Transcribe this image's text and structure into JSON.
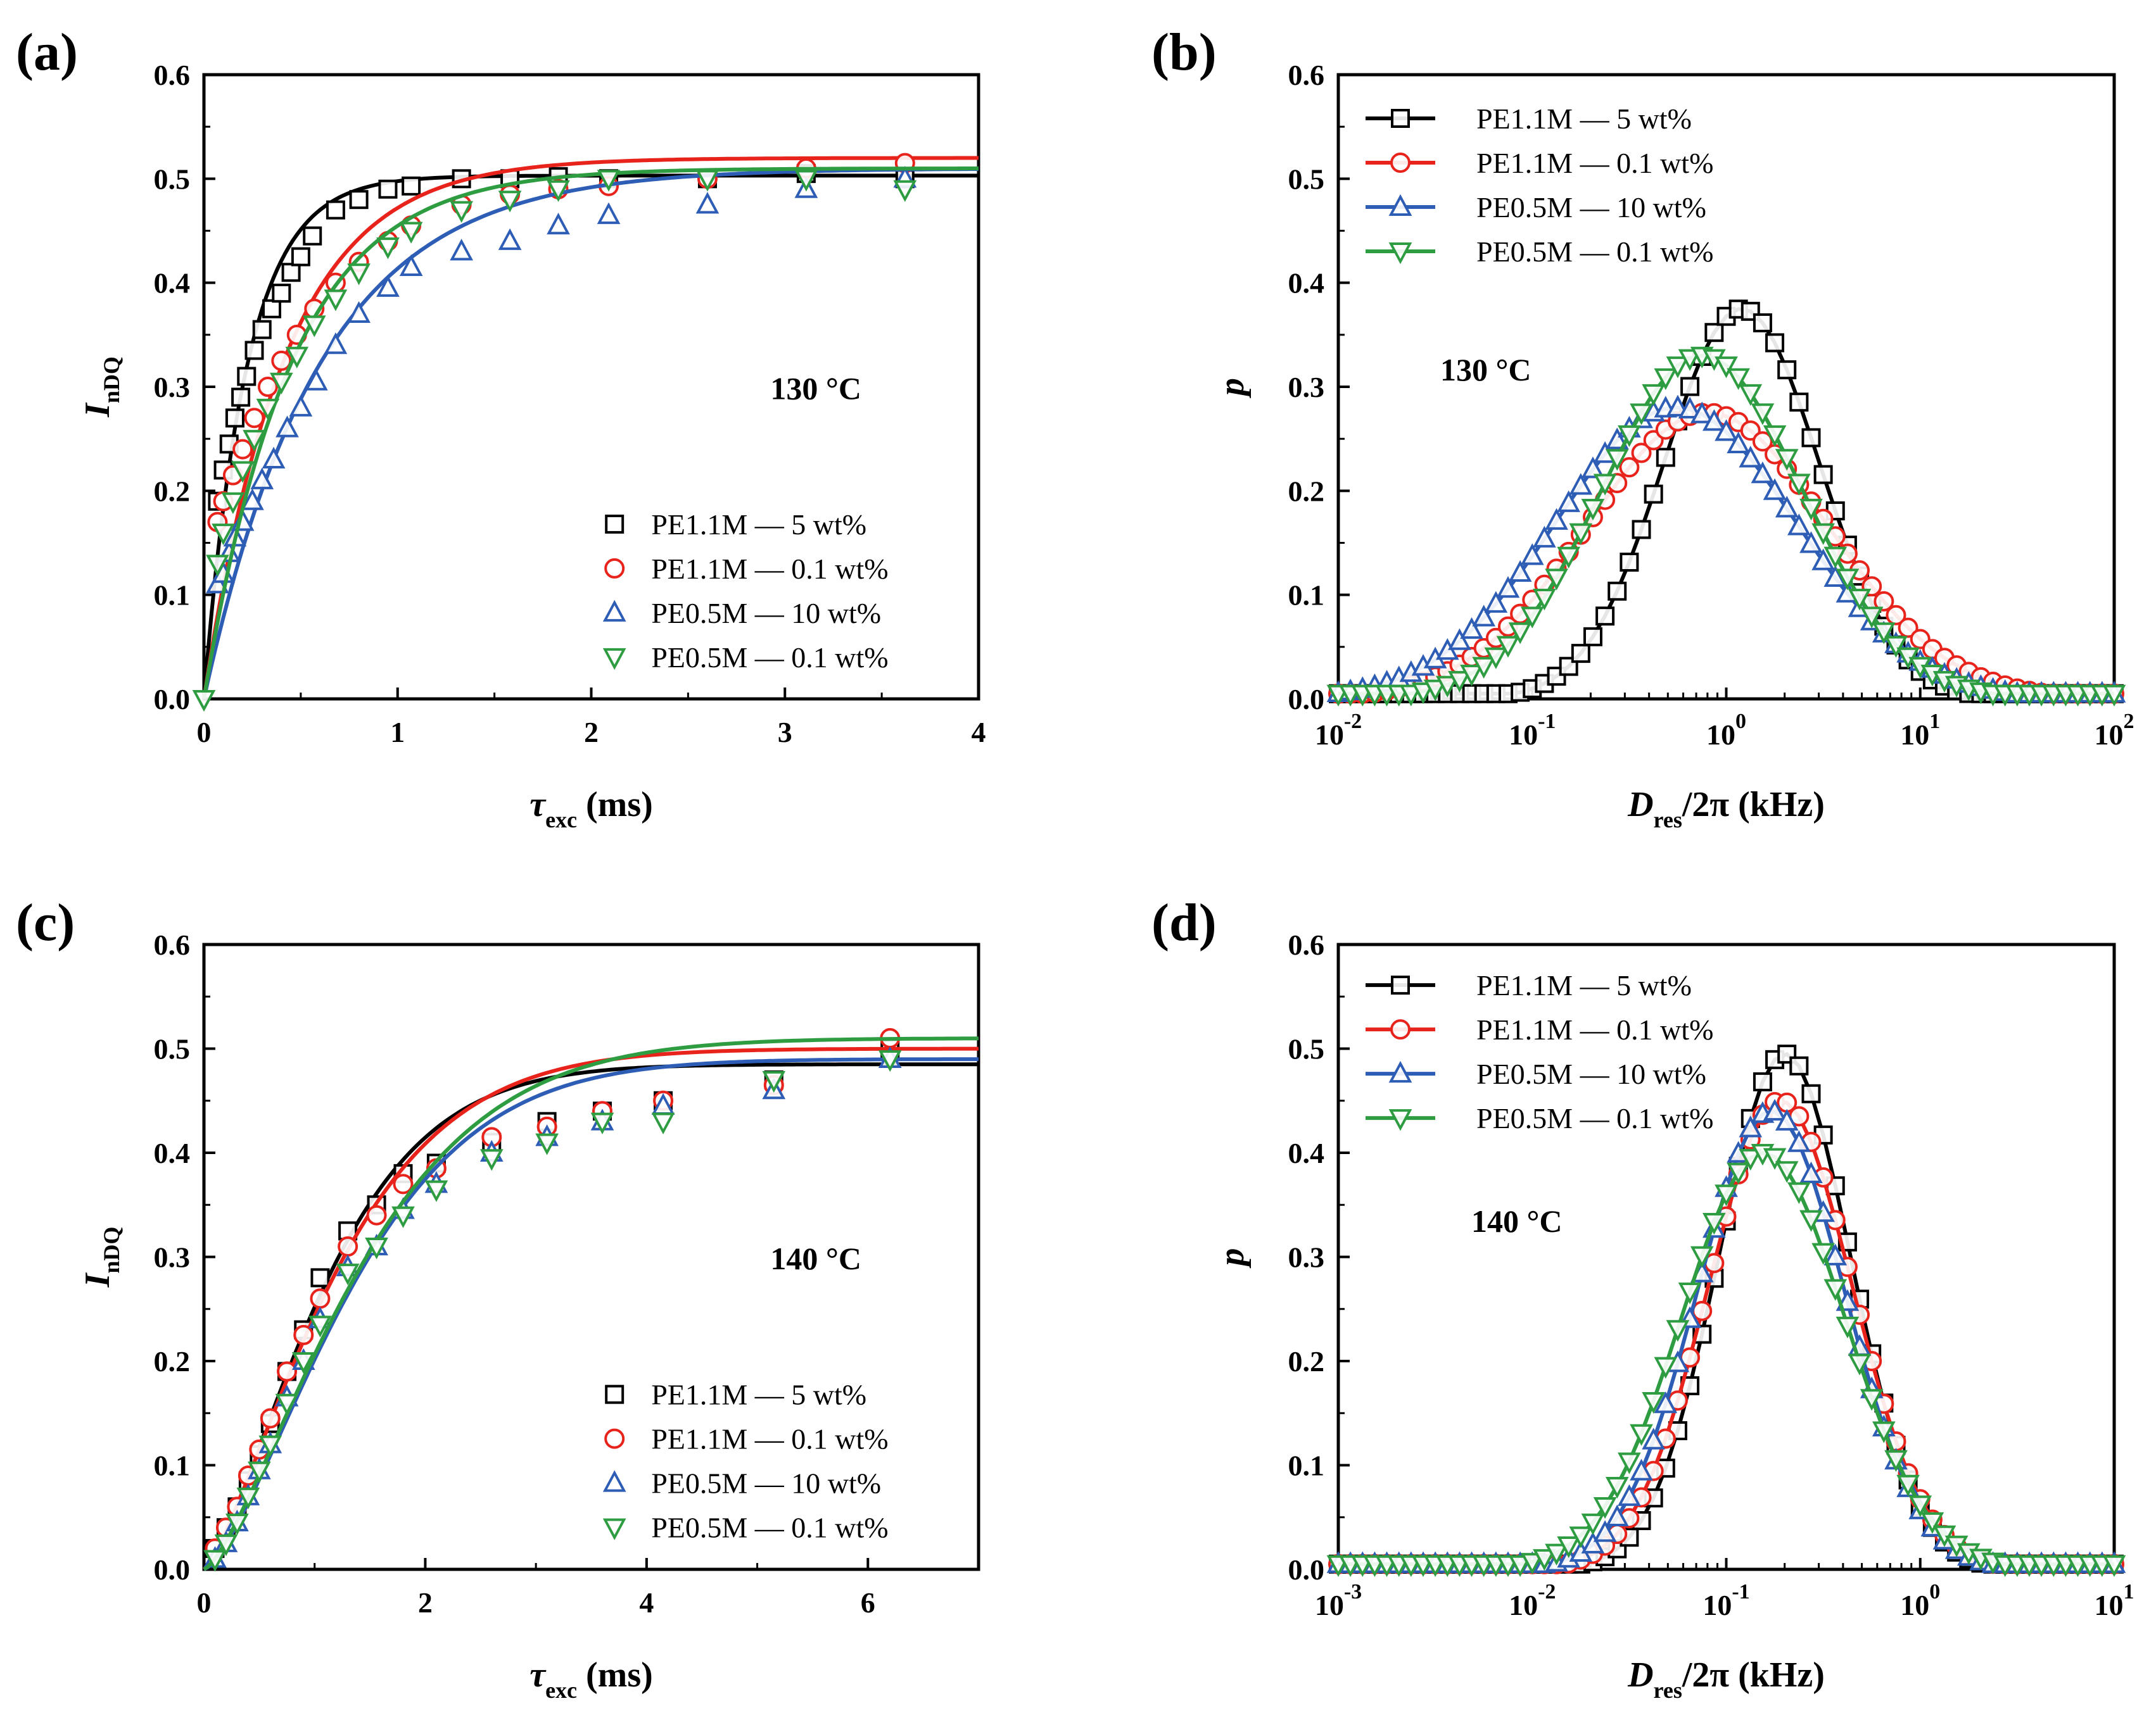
{
  "chart_data": [
    {
      "panel": "(a)",
      "type": "scatter",
      "annotation": "130 °C",
      "xlabel": {
        "main": "τ",
        "sub": "exc",
        "tail": " (ms)"
      },
      "ylabel": {
        "main": "I",
        "sub": "nDQ"
      },
      "xlim": [
        0,
        4
      ],
      "ylim": [
        0,
        0.6
      ],
      "xticks": [
        "0",
        "1",
        "2",
        "3",
        "4"
      ],
      "yticks": [
        "0.0",
        "0.1",
        "0.2",
        "0.3",
        "0.4",
        "0.5",
        "0.6"
      ],
      "xscale": "linear",
      "legend_position": "bottom-right",
      "legend_style": "markers",
      "series": [
        {
          "name": "PE1.1M — 5 wt%",
          "color": "#000000",
          "marker": "square",
          "fit": {
            "A": 0.503,
            "tau": 0.22
          },
          "x": [
            0.07,
            0.1,
            0.13,
            0.16,
            0.19,
            0.22,
            0.26,
            0.3,
            0.35,
            0.4,
            0.45,
            0.5,
            0.56,
            0.68,
            0.8,
            0.95,
            1.07,
            1.33,
            1.58,
            1.83,
            2.09,
            2.6,
            3.11,
            3.62
          ],
          "y": [
            0.19,
            0.22,
            0.245,
            0.27,
            0.29,
            0.31,
            0.335,
            0.355,
            0.375,
            0.39,
            0.41,
            0.425,
            0.445,
            0.47,
            0.48,
            0.49,
            0.493,
            0.5,
            0.5,
            0.502,
            0.5,
            0.5,
            0.505,
            0.5
          ]
        },
        {
          "name": "PE1.1M — 0.1 wt%",
          "color": "#e8231b",
          "marker": "circle",
          "fit": {
            "A": 0.52,
            "tau": 0.42
          },
          "x": [
            0.07,
            0.1,
            0.15,
            0.2,
            0.26,
            0.33,
            0.4,
            0.48,
            0.57,
            0.68,
            0.8,
            0.95,
            1.07,
            1.33,
            1.58,
            1.83,
            2.09,
            2.6,
            3.11,
            3.62
          ],
          "y": [
            0.17,
            0.19,
            0.215,
            0.24,
            0.27,
            0.3,
            0.325,
            0.35,
            0.375,
            0.4,
            0.42,
            0.44,
            0.455,
            0.475,
            0.485,
            0.49,
            0.493,
            0.5,
            0.51,
            0.515
          ]
        },
        {
          "name": "PE0.5M — 10 wt%",
          "color": "#2e5db5",
          "marker": "triangle-up",
          "fit": {
            "A": 0.51,
            "tau": 0.6
          },
          "x": [
            0.07,
            0.1,
            0.13,
            0.16,
            0.2,
            0.25,
            0.3,
            0.36,
            0.43,
            0.5,
            0.58,
            0.68,
            0.8,
            0.95,
            1.07,
            1.33,
            1.58,
            1.83,
            2.09,
            2.6,
            3.11,
            3.62
          ],
          "y": [
            0.11,
            0.12,
            0.14,
            0.155,
            0.17,
            0.19,
            0.21,
            0.23,
            0.26,
            0.28,
            0.305,
            0.34,
            0.37,
            0.395,
            0.415,
            0.43,
            0.44,
            0.455,
            0.465,
            0.475,
            0.49,
            0.5
          ]
        },
        {
          "name": "PE0.5M — 0.1 wt%",
          "color": "#2e9c40",
          "marker": "triangle-down",
          "fit": {
            "A": 0.51,
            "tau": 0.45
          },
          "x": [
            0.0,
            0.07,
            0.1,
            0.15,
            0.2,
            0.26,
            0.33,
            0.4,
            0.48,
            0.57,
            0.68,
            0.8,
            0.95,
            1.07,
            1.33,
            1.58,
            1.83,
            2.09,
            2.6,
            3.11,
            3.62
          ],
          "y": [
            0.0,
            0.13,
            0.16,
            0.19,
            0.22,
            0.25,
            0.28,
            0.305,
            0.33,
            0.36,
            0.385,
            0.41,
            0.435,
            0.45,
            0.47,
            0.48,
            0.49,
            0.5,
            0.5,
            0.5,
            0.49
          ]
        }
      ]
    },
    {
      "panel": "(b)",
      "type": "line",
      "annotation": "130 °C",
      "xlabel": {
        "main": "D",
        "sub": "res",
        "tail": "/2π (kHz)"
      },
      "ylabel": {
        "main": "p",
        "sub": "",
        "tail": ""
      },
      "xlim": [
        -2,
        2
      ],
      "ylim": [
        0,
        0.6
      ],
      "xticks_exp": [
        "-2",
        "-1",
        "0",
        "1",
        "2"
      ],
      "yticks": [
        "0.0",
        "0.1",
        "0.2",
        "0.3",
        "0.4",
        "0.5",
        "0.6"
      ],
      "xscale": "log",
      "legend_position": "top-left",
      "legend_style": "line-marker",
      "series": [
        {
          "name": "PE1.1M — 5 wt%",
          "color": "#000000",
          "marker": "square",
          "dist": {
            "center": 1.2,
            "sigma": 0.4,
            "peak": 0.375
          }
        },
        {
          "name": "PE1.1M — 0.1 wt%",
          "color": "#e8231b",
          "marker": "circle",
          "dist": {
            "center": 0.8,
            "sigma": 0.62,
            "peak": 0.275
          }
        },
        {
          "name": "PE0.5M — 10 wt%",
          "color": "#2e5db5",
          "marker": "triangle-up",
          "dist": {
            "center": 0.55,
            "sigma": 0.62,
            "peak": 0.28
          }
        },
        {
          "name": "PE0.5M — 0.1 wt%",
          "color": "#2e9c40",
          "marker": "triangle-down",
          "dist": {
            "center": 0.75,
            "sigma": 0.52,
            "peak": 0.33
          }
        }
      ]
    },
    {
      "panel": "(c)",
      "type": "scatter",
      "annotation": "140 °C",
      "xlabel": {
        "main": "τ",
        "sub": "exc",
        "tail": " (ms)"
      },
      "ylabel": {
        "main": "I",
        "sub": "nDQ"
      },
      "xlim": [
        0,
        7
      ],
      "ylim": [
        0,
        0.6
      ],
      "xticks": [
        "0",
        "2",
        "4",
        "6"
      ],
      "xtick_values": [
        0,
        2,
        4,
        6
      ],
      "yticks": [
        "0.0",
        "0.1",
        "0.2",
        "0.3",
        "0.4",
        "0.5",
        "0.6"
      ],
      "xscale": "linear",
      "legend_position": "bottom-right",
      "legend_style": "markers",
      "series": [
        {
          "name": "PE1.1M — 5 wt%",
          "color": "#000000",
          "marker": "square",
          "fit": {
            "A": 0.485,
            "tau": 1.25,
            "power": 1.4
          },
          "x": [
            0.1,
            0.2,
            0.3,
            0.4,
            0.5,
            0.6,
            0.75,
            0.9,
            1.05,
            1.3,
            1.56,
            1.8,
            2.1,
            2.6,
            3.1,
            3.6,
            4.15,
            5.15,
            6.2
          ],
          "y": [
            0.02,
            0.04,
            0.06,
            0.085,
            0.11,
            0.14,
            0.19,
            0.23,
            0.28,
            0.325,
            0.35,
            0.38,
            0.39,
            0.41,
            0.43,
            0.44,
            0.45,
            0.47,
            0.5
          ]
        },
        {
          "name": "PE1.1M — 0.1 wt%",
          "color": "#e8231b",
          "marker": "circle",
          "fit": {
            "A": 0.5,
            "tau": 1.35,
            "power": 1.35
          },
          "x": [
            0.1,
            0.2,
            0.3,
            0.4,
            0.5,
            0.6,
            0.75,
            0.9,
            1.05,
            1.3,
            1.56,
            1.8,
            2.1,
            2.6,
            3.1,
            3.6,
            4.15,
            5.15,
            6.2
          ],
          "y": [
            0.02,
            0.04,
            0.06,
            0.09,
            0.115,
            0.145,
            0.19,
            0.225,
            0.26,
            0.31,
            0.34,
            0.37,
            0.385,
            0.415,
            0.425,
            0.44,
            0.45,
            0.465,
            0.51
          ]
        },
        {
          "name": "PE0.5M — 10 wt%",
          "color": "#2e5db5",
          "marker": "triangle-up",
          "fit": {
            "A": 0.49,
            "tau": 1.55,
            "power": 1.45
          },
          "x": [
            0.1,
            0.2,
            0.3,
            0.4,
            0.5,
            0.6,
            0.75,
            0.9,
            1.05,
            1.3,
            1.56,
            1.8,
            2.1,
            2.6,
            3.1,
            3.6,
            4.15,
            5.15,
            6.2
          ],
          "y": [
            0.01,
            0.025,
            0.045,
            0.07,
            0.095,
            0.12,
            0.165,
            0.2,
            0.24,
            0.29,
            0.31,
            0.345,
            0.37,
            0.4,
            0.415,
            0.43,
            0.445,
            0.46,
            0.49
          ]
        },
        {
          "name": "PE0.5M — 0.1 wt%",
          "color": "#2e9c40",
          "marker": "triangle-down",
          "fit": {
            "A": 0.51,
            "tau": 1.6,
            "power": 1.4
          },
          "x": [
            0.1,
            0.2,
            0.3,
            0.4,
            0.5,
            0.6,
            0.75,
            0.9,
            1.05,
            1.3,
            1.56,
            1.8,
            2.1,
            2.6,
            3.1,
            3.6,
            4.15,
            5.15,
            6.2
          ],
          "y": [
            0.01,
            0.025,
            0.045,
            0.07,
            0.095,
            0.12,
            0.16,
            0.2,
            0.235,
            0.285,
            0.31,
            0.34,
            0.365,
            0.395,
            0.41,
            0.43,
            0.43,
            0.47,
            0.49
          ]
        }
      ]
    },
    {
      "panel": "(d)",
      "type": "line",
      "annotation": "140 °C",
      "xlabel": {
        "main": "D",
        "sub": "res",
        "tail": "/2π (kHz)"
      },
      "ylabel": {
        "main": "p",
        "sub": "",
        "tail": ""
      },
      "xlim": [
        -3,
        1
      ],
      "ylim": [
        0,
        0.6
      ],
      "xticks_exp": [
        "-3",
        "-2",
        "-1",
        "0",
        "1"
      ],
      "yticks": [
        "0.0",
        "0.1",
        "0.2",
        "0.3",
        "0.4",
        "0.5",
        "0.6"
      ],
      "xscale": "log",
      "legend_position": "top-left",
      "legend_style": "line-marker",
      "series": [
        {
          "name": "PE1.1M — 5 wt%",
          "color": "#000000",
          "marker": "square",
          "dist": {
            "center": 0.2,
            "sigma": 0.34,
            "peak": 0.495
          }
        },
        {
          "name": "PE1.1M — 0.1 wt%",
          "color": "#e8231b",
          "marker": "circle",
          "dist": {
            "center": 0.19,
            "sigma": 0.37,
            "peak": 0.45
          }
        },
        {
          "name": "PE0.5M — 10 wt%",
          "color": "#2e5db5",
          "marker": "triangle-up",
          "dist": {
            "center": 0.17,
            "sigma": 0.38,
            "peak": 0.44
          }
        },
        {
          "name": "PE0.5M — 0.1 wt%",
          "color": "#2e9c40",
          "marker": "triangle-down",
          "dist": {
            "center": 0.155,
            "sigma": 0.42,
            "peak": 0.4
          }
        }
      ]
    }
  ]
}
